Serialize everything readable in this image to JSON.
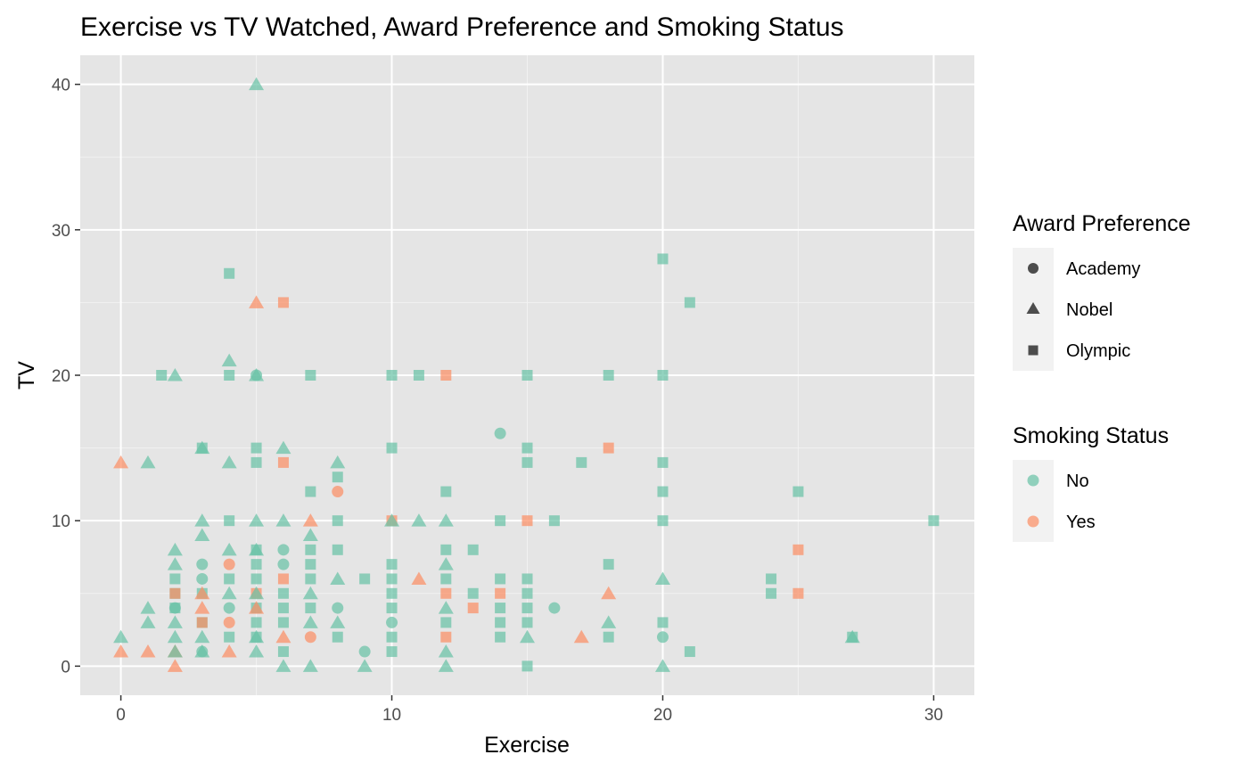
{
  "chart_data": {
    "type": "scatter",
    "title": "Exercise vs TV Watched, Award Preference and Smoking Status",
    "xlabel": "Exercise",
    "ylabel": "TV",
    "xlim": [
      -1.5,
      31.5
    ],
    "ylim": [
      -2,
      42
    ],
    "x_ticks": [
      0,
      10,
      20,
      30
    ],
    "y_ticks": [
      0,
      10,
      20,
      30,
      40
    ],
    "grid": true,
    "legend_position": "right",
    "colors": {
      "No": "#66c2a5",
      "Yes": "#fc8d62",
      "panel": "#e5e5e5",
      "legend_key": "#4d4d4d"
    },
    "legends": {
      "shape": {
        "title": "Award Preference",
        "entries": [
          {
            "label": "Academy",
            "shape": "circle"
          },
          {
            "label": "Nobel",
            "shape": "triangle"
          },
          {
            "label": "Olympic",
            "shape": "square"
          }
        ]
      },
      "color": {
        "title": "Smoking Status",
        "entries": [
          {
            "label": "No",
            "color": "#66c2a5"
          },
          {
            "label": "Yes",
            "color": "#fc8d62"
          }
        ]
      }
    },
    "points": [
      [
        0,
        2,
        "Nobel",
        "No"
      ],
      [
        0,
        14,
        "Nobel",
        "Yes"
      ],
      [
        0,
        1,
        "Nobel",
        "Yes"
      ],
      [
        1,
        14,
        "Nobel",
        "No"
      ],
      [
        1,
        4,
        "Nobel",
        "No"
      ],
      [
        1,
        3,
        "Nobel",
        "No"
      ],
      [
        1,
        1,
        "Nobel",
        "Yes"
      ],
      [
        1.5,
        20,
        "Olympic",
        "No"
      ],
      [
        2,
        20,
        "Nobel",
        "No"
      ],
      [
        2,
        8,
        "Nobel",
        "No"
      ],
      [
        2,
        7,
        "Nobel",
        "No"
      ],
      [
        2,
        6,
        "Olympic",
        "No"
      ],
      [
        2,
        5,
        "Olympic",
        "No"
      ],
      [
        2,
        5,
        "Olympic",
        "Yes"
      ],
      [
        2,
        4,
        "Academy",
        "No"
      ],
      [
        2,
        4,
        "Olympic",
        "No"
      ],
      [
        2,
        3,
        "Nobel",
        "No"
      ],
      [
        2,
        2,
        "Nobel",
        "No"
      ],
      [
        2,
        1,
        "Nobel",
        "Yes"
      ],
      [
        2,
        1,
        "Nobel",
        "No"
      ],
      [
        2,
        0,
        "Nobel",
        "Yes"
      ],
      [
        3,
        15,
        "Nobel",
        "No"
      ],
      [
        3,
        15,
        "Olympic",
        "No"
      ],
      [
        3,
        10,
        "Nobel",
        "No"
      ],
      [
        3,
        9,
        "Nobel",
        "No"
      ],
      [
        3,
        7,
        "Academy",
        "No"
      ],
      [
        3,
        6,
        "Academy",
        "No"
      ],
      [
        3,
        5,
        "Olympic",
        "No"
      ],
      [
        3,
        5,
        "Nobel",
        "Yes"
      ],
      [
        3,
        4,
        "Nobel",
        "Yes"
      ],
      [
        3,
        3,
        "Olympic",
        "No"
      ],
      [
        3,
        3,
        "Olympic",
        "Yes"
      ],
      [
        3,
        2,
        "Nobel",
        "No"
      ],
      [
        3,
        1,
        "Nobel",
        "No"
      ],
      [
        3,
        1,
        "Academy",
        "No"
      ],
      [
        4,
        27,
        "Olympic",
        "No"
      ],
      [
        4,
        21,
        "Nobel",
        "No"
      ],
      [
        4,
        20,
        "Olympic",
        "No"
      ],
      [
        4,
        14,
        "Nobel",
        "No"
      ],
      [
        4,
        10,
        "Olympic",
        "No"
      ],
      [
        4,
        8,
        "Nobel",
        "No"
      ],
      [
        4,
        7,
        "Academy",
        "Yes"
      ],
      [
        4,
        6,
        "Olympic",
        "No"
      ],
      [
        4,
        5,
        "Nobel",
        "No"
      ],
      [
        4,
        4,
        "Academy",
        "No"
      ],
      [
        4,
        3,
        "Academy",
        "Yes"
      ],
      [
        4,
        2,
        "Olympic",
        "No"
      ],
      [
        4,
        1,
        "Nobel",
        "Yes"
      ],
      [
        5,
        40,
        "Nobel",
        "No"
      ],
      [
        5,
        25,
        "Nobel",
        "Yes"
      ],
      [
        5,
        20,
        "Nobel",
        "No"
      ],
      [
        5,
        20,
        "Academy",
        "No"
      ],
      [
        5,
        15,
        "Olympic",
        "No"
      ],
      [
        5,
        14,
        "Olympic",
        "No"
      ],
      [
        5,
        10,
        "Nobel",
        "No"
      ],
      [
        5,
        8,
        "Nobel",
        "No"
      ],
      [
        5,
        8,
        "Olympic",
        "No"
      ],
      [
        5,
        7,
        "Olympic",
        "No"
      ],
      [
        5,
        6,
        "Olympic",
        "No"
      ],
      [
        5,
        5,
        "Olympic",
        "Yes"
      ],
      [
        5,
        5,
        "Nobel",
        "No"
      ],
      [
        5,
        4,
        "Olympic",
        "No"
      ],
      [
        5,
        4,
        "Nobel",
        "Yes"
      ],
      [
        5,
        3,
        "Olympic",
        "No"
      ],
      [
        5,
        2,
        "Olympic",
        "No"
      ],
      [
        5,
        2,
        "Nobel",
        "No"
      ],
      [
        5,
        1,
        "Nobel",
        "No"
      ],
      [
        6,
        25,
        "Olympic",
        "Yes"
      ],
      [
        6,
        15,
        "Nobel",
        "No"
      ],
      [
        6,
        14,
        "Olympic",
        "Yes"
      ],
      [
        6,
        10,
        "Nobel",
        "No"
      ],
      [
        6,
        8,
        "Academy",
        "No"
      ],
      [
        6,
        7,
        "Academy",
        "No"
      ],
      [
        6,
        6,
        "Olympic",
        "Yes"
      ],
      [
        6,
        5,
        "Olympic",
        "No"
      ],
      [
        6,
        4,
        "Olympic",
        "No"
      ],
      [
        6,
        3,
        "Olympic",
        "No"
      ],
      [
        6,
        2,
        "Nobel",
        "Yes"
      ],
      [
        6,
        1,
        "Olympic",
        "No"
      ],
      [
        6,
        0,
        "Nobel",
        "No"
      ],
      [
        7,
        20,
        "Olympic",
        "No"
      ],
      [
        7,
        12,
        "Olympic",
        "No"
      ],
      [
        7,
        10,
        "Nobel",
        "Yes"
      ],
      [
        7,
        9,
        "Nobel",
        "No"
      ],
      [
        7,
        8,
        "Olympic",
        "No"
      ],
      [
        7,
        7,
        "Olympic",
        "No"
      ],
      [
        7,
        6,
        "Olympic",
        "No"
      ],
      [
        7,
        5,
        "Nobel",
        "No"
      ],
      [
        7,
        4,
        "Olympic",
        "No"
      ],
      [
        7,
        3,
        "Nobel",
        "No"
      ],
      [
        7,
        2,
        "Academy",
        "Yes"
      ],
      [
        7,
        0,
        "Nobel",
        "No"
      ],
      [
        8,
        14,
        "Nobel",
        "No"
      ],
      [
        8,
        13,
        "Olympic",
        "No"
      ],
      [
        8,
        12,
        "Academy",
        "Yes"
      ],
      [
        8,
        10,
        "Olympic",
        "No"
      ],
      [
        8,
        8,
        "Olympic",
        "No"
      ],
      [
        8,
        6,
        "Nobel",
        "No"
      ],
      [
        8,
        4,
        "Academy",
        "No"
      ],
      [
        8,
        3,
        "Nobel",
        "No"
      ],
      [
        8,
        2,
        "Olympic",
        "No"
      ],
      [
        9,
        6,
        "Olympic",
        "No"
      ],
      [
        9,
        1,
        "Academy",
        "No"
      ],
      [
        9,
        0,
        "Nobel",
        "No"
      ],
      [
        10,
        20,
        "Olympic",
        "No"
      ],
      [
        10,
        15,
        "Olympic",
        "No"
      ],
      [
        10,
        10,
        "Olympic",
        "Yes"
      ],
      [
        10,
        10,
        "Nobel",
        "No"
      ],
      [
        10,
        7,
        "Olympic",
        "No"
      ],
      [
        10,
        6,
        "Olympic",
        "No"
      ],
      [
        10,
        5,
        "Olympic",
        "No"
      ],
      [
        10,
        4,
        "Olympic",
        "No"
      ],
      [
        10,
        3,
        "Academy",
        "No"
      ],
      [
        10,
        2,
        "Olympic",
        "No"
      ],
      [
        10,
        1,
        "Olympic",
        "No"
      ],
      [
        11,
        20,
        "Olympic",
        "No"
      ],
      [
        11,
        10,
        "Nobel",
        "No"
      ],
      [
        11,
        6,
        "Nobel",
        "Yes"
      ],
      [
        12,
        20,
        "Olympic",
        "Yes"
      ],
      [
        12,
        12,
        "Olympic",
        "No"
      ],
      [
        12,
        10,
        "Nobel",
        "No"
      ],
      [
        12,
        8,
        "Olympic",
        "No"
      ],
      [
        12,
        7,
        "Nobel",
        "No"
      ],
      [
        12,
        6,
        "Olympic",
        "No"
      ],
      [
        12,
        5,
        "Olympic",
        "Yes"
      ],
      [
        12,
        4,
        "Nobel",
        "No"
      ],
      [
        12,
        3,
        "Olympic",
        "No"
      ],
      [
        12,
        2,
        "Olympic",
        "Yes"
      ],
      [
        12,
        1,
        "Nobel",
        "No"
      ],
      [
        12,
        0,
        "Nobel",
        "No"
      ],
      [
        13,
        8,
        "Olympic",
        "No"
      ],
      [
        13,
        5,
        "Olympic",
        "No"
      ],
      [
        13,
        4,
        "Olympic",
        "Yes"
      ],
      [
        14,
        16,
        "Academy",
        "No"
      ],
      [
        14,
        10,
        "Olympic",
        "No"
      ],
      [
        14,
        6,
        "Olympic",
        "No"
      ],
      [
        14,
        5,
        "Olympic",
        "Yes"
      ],
      [
        14,
        4,
        "Olympic",
        "No"
      ],
      [
        14,
        3,
        "Olympic",
        "No"
      ],
      [
        14,
        2,
        "Olympic",
        "No"
      ],
      [
        15,
        20,
        "Olympic",
        "No"
      ],
      [
        15,
        15,
        "Olympic",
        "No"
      ],
      [
        15,
        14,
        "Olympic",
        "No"
      ],
      [
        15,
        10,
        "Olympic",
        "Yes"
      ],
      [
        15,
        6,
        "Olympic",
        "No"
      ],
      [
        15,
        5,
        "Olympic",
        "No"
      ],
      [
        15,
        4,
        "Olympic",
        "No"
      ],
      [
        15,
        3,
        "Olympic",
        "No"
      ],
      [
        15,
        2,
        "Nobel",
        "No"
      ],
      [
        15,
        0,
        "Olympic",
        "No"
      ],
      [
        16,
        10,
        "Olympic",
        "No"
      ],
      [
        16,
        4,
        "Academy",
        "No"
      ],
      [
        17,
        14,
        "Olympic",
        "No"
      ],
      [
        17,
        2,
        "Nobel",
        "Yes"
      ],
      [
        18,
        20,
        "Olympic",
        "No"
      ],
      [
        18,
        15,
        "Olympic",
        "Yes"
      ],
      [
        18,
        7,
        "Olympic",
        "No"
      ],
      [
        18,
        5,
        "Nobel",
        "Yes"
      ],
      [
        18,
        3,
        "Nobel",
        "No"
      ],
      [
        18,
        2,
        "Olympic",
        "No"
      ],
      [
        20,
        28,
        "Olympic",
        "No"
      ],
      [
        20,
        20,
        "Olympic",
        "No"
      ],
      [
        20,
        14,
        "Olympic",
        "No"
      ],
      [
        20,
        12,
        "Olympic",
        "No"
      ],
      [
        20,
        10,
        "Olympic",
        "No"
      ],
      [
        20,
        6,
        "Nobel",
        "No"
      ],
      [
        20,
        3,
        "Olympic",
        "No"
      ],
      [
        20,
        2,
        "Academy",
        "No"
      ],
      [
        20,
        0,
        "Nobel",
        "No"
      ],
      [
        21,
        25,
        "Olympic",
        "No"
      ],
      [
        21,
        1,
        "Olympic",
        "No"
      ],
      [
        24,
        6,
        "Olympic",
        "No"
      ],
      [
        24,
        5,
        "Olympic",
        "No"
      ],
      [
        25,
        12,
        "Olympic",
        "No"
      ],
      [
        25,
        8,
        "Olympic",
        "Yes"
      ],
      [
        25,
        5,
        "Olympic",
        "Yes"
      ],
      [
        27,
        2,
        "Nobel",
        "No"
      ],
      [
        27,
        2,
        "Olympic",
        "No"
      ],
      [
        30,
        10,
        "Olympic",
        "No"
      ]
    ]
  }
}
